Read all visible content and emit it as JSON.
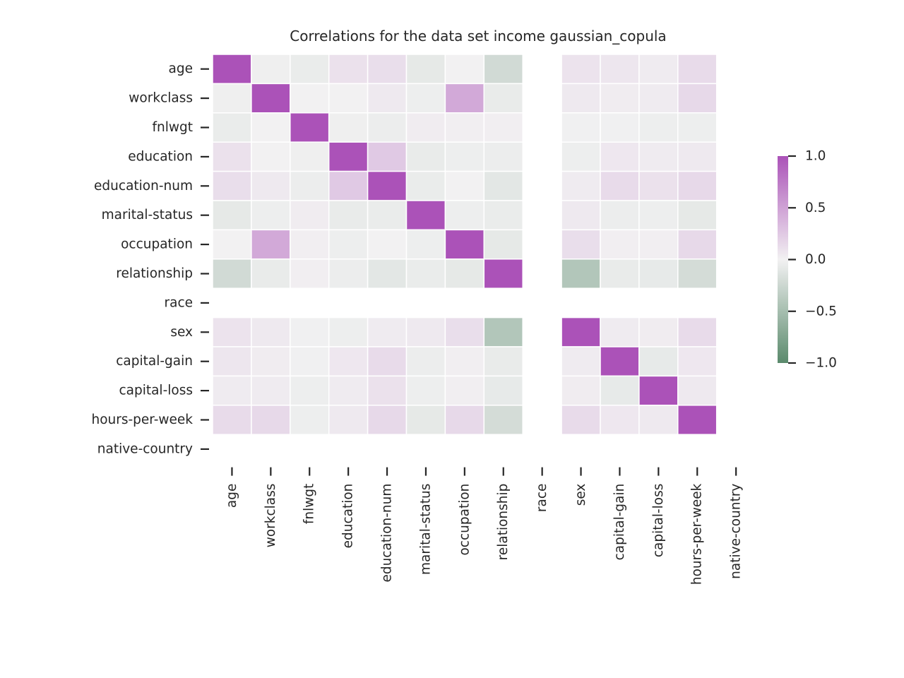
{
  "chart_data": {
    "type": "heatmap",
    "title": "Correlations for the data set income gaussian_copula",
    "xlabel": "",
    "ylabel": "",
    "variables": [
      "age",
      "workclass",
      "fnlwgt",
      "education",
      "education-num",
      "marital-status",
      "occupation",
      "relationship",
      "race",
      "sex",
      "capital-gain",
      "capital-loss",
      "hours-per-week",
      "native-country"
    ],
    "matrix": [
      [
        1.0,
        -0.02,
        -0.05,
        0.1,
        0.12,
        -0.08,
        0.0,
        -0.22,
        null,
        0.09,
        0.07,
        0.04,
        0.14,
        null
      ],
      [
        -0.02,
        1.0,
        0.0,
        0.0,
        0.05,
        -0.03,
        0.45,
        -0.06,
        null,
        0.05,
        0.03,
        0.04,
        0.15,
        null
      ],
      [
        -0.05,
        0.0,
        1.0,
        -0.02,
        -0.04,
        0.03,
        0.02,
        0.02,
        null,
        -0.01,
        -0.01,
        -0.03,
        -0.03,
        null
      ],
      [
        0.1,
        0.0,
        -0.02,
        1.0,
        0.25,
        -0.06,
        -0.03,
        -0.04,
        null,
        -0.03,
        0.06,
        0.04,
        0.05,
        null
      ],
      [
        0.12,
        0.05,
        -0.04,
        0.25,
        1.0,
        -0.05,
        0.0,
        -0.1,
        null,
        0.04,
        0.14,
        0.1,
        0.15,
        null
      ],
      [
        -0.08,
        -0.03,
        0.03,
        -0.06,
        -0.05,
        1.0,
        -0.03,
        -0.05,
        null,
        0.05,
        -0.04,
        -0.03,
        -0.08,
        null
      ],
      [
        0.0,
        0.45,
        0.02,
        -0.03,
        0.0,
        -0.03,
        1.0,
        -0.08,
        null,
        0.12,
        0.02,
        0.02,
        0.15,
        null
      ],
      [
        -0.22,
        -0.06,
        0.02,
        -0.04,
        -0.1,
        -0.05,
        -0.08,
        1.0,
        null,
        -0.42,
        -0.06,
        -0.07,
        -0.2,
        null
      ],
      [
        null,
        null,
        null,
        null,
        null,
        null,
        null,
        null,
        null,
        null,
        null,
        null,
        null,
        null
      ],
      [
        0.09,
        0.05,
        -0.01,
        -0.03,
        0.04,
        0.05,
        0.12,
        -0.42,
        null,
        1.0,
        0.04,
        0.03,
        0.14,
        null
      ],
      [
        0.07,
        0.03,
        -0.01,
        0.06,
        0.14,
        -0.04,
        0.02,
        -0.06,
        null,
        0.04,
        1.0,
        -0.07,
        0.06,
        null
      ],
      [
        0.04,
        0.04,
        -0.03,
        0.04,
        0.1,
        -0.03,
        0.02,
        -0.07,
        null,
        0.03,
        -0.07,
        1.0,
        0.05,
        null
      ],
      [
        0.14,
        0.15,
        -0.03,
        0.05,
        0.15,
        -0.08,
        0.15,
        -0.2,
        null,
        0.14,
        0.06,
        0.05,
        1.0,
        null
      ],
      [
        null,
        null,
        null,
        null,
        null,
        null,
        null,
        null,
        null,
        null,
        null,
        null,
        null,
        null
      ]
    ],
    "colorbar": {
      "range": [
        -1.0,
        1.0
      ],
      "ticks": [
        1.0,
        0.5,
        0.0,
        -0.5,
        -1.0
      ],
      "tick_labels": [
        "1.0",
        "0.5",
        "0.0",
        "−0.5",
        "−1.0"
      ],
      "colors": {
        "low": "#5a8a6c",
        "mid": "#f2f1f2",
        "high": "#ab52b8"
      }
    },
    "grid": false
  }
}
